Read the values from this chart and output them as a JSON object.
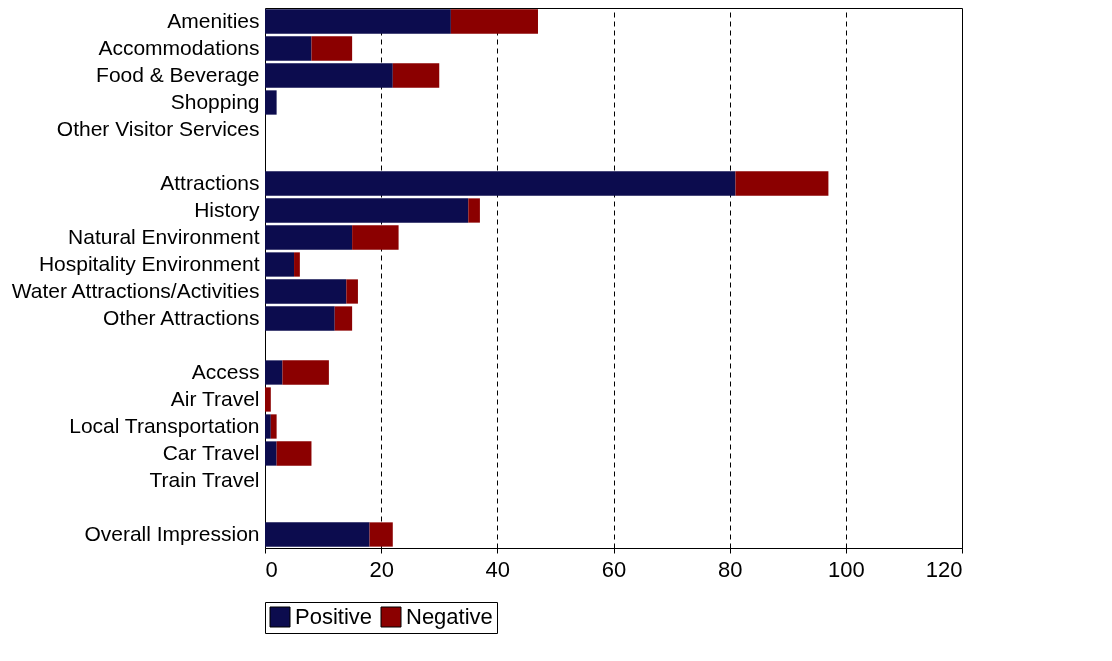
{
  "chart_data": {
    "type": "bar",
    "orientation": "horizontal",
    "stacked": true,
    "categories": [
      "Amenities",
      "Accommodations",
      "Food & Beverage",
      "Shopping",
      "Other Visitor Services",
      null,
      "Attractions",
      "History",
      "Natural Environment",
      "Hospitality Environment",
      "Water Attractions/Activities",
      "Other Attractions",
      null,
      "Access",
      "Air Travel",
      "Local Transportation",
      "Car Travel",
      "Train Travel",
      null,
      "Overall Impression"
    ],
    "series": [
      {
        "name": "Positive",
        "color": "#0c0c4e",
        "values": [
          32,
          8,
          22,
          2,
          0,
          null,
          81,
          35,
          15,
          5,
          14,
          12,
          null,
          3,
          0,
          1,
          2,
          0,
          null,
          18
        ]
      },
      {
        "name": "Negative",
        "color": "#8b0000",
        "values": [
          15,
          7,
          8,
          0,
          0,
          null,
          16,
          2,
          8,
          1,
          2,
          3,
          null,
          8,
          1,
          1,
          6,
          0,
          null,
          4
        ]
      }
    ],
    "xlim": [
      0,
      120
    ],
    "xticks": [
      0,
      20,
      40,
      60,
      80,
      100,
      120
    ],
    "grid": "x",
    "legend": "bottom"
  }
}
